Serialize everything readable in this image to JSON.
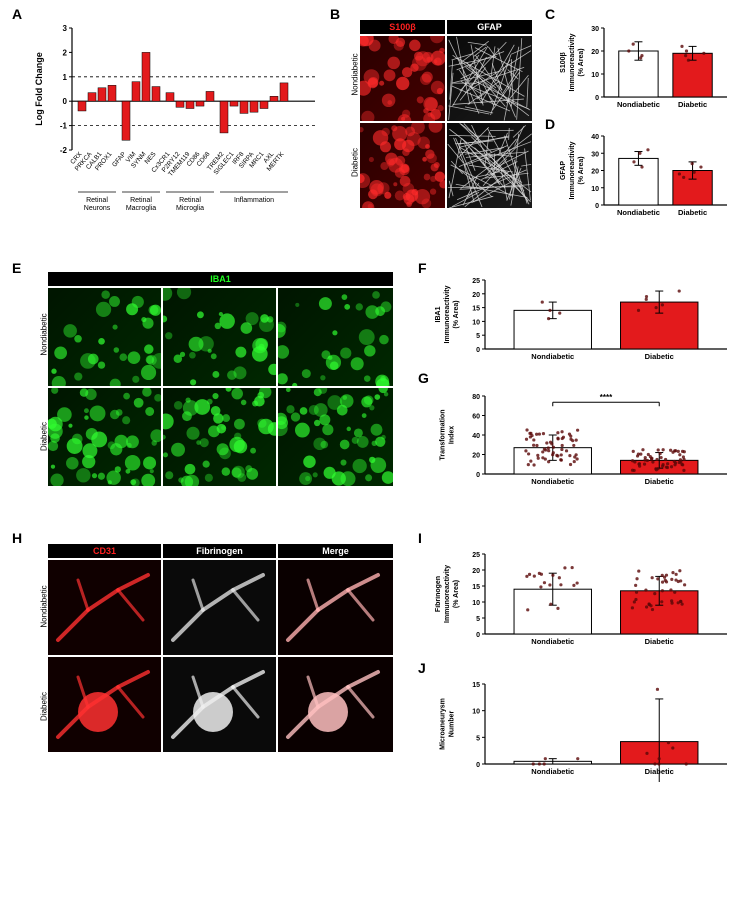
{
  "panels": {
    "A": "A",
    "B": "B",
    "C": "C",
    "D": "D",
    "E": "E",
    "F": "F",
    "G": "G",
    "H": "H",
    "I": "I",
    "J": "J"
  },
  "panelA": {
    "type": "bar",
    "ylabel": "Log Fold Change",
    "ylim": [
      -2,
      3
    ],
    "ytick_step": 1,
    "dashed_lines": [
      1,
      -1
    ],
    "title_fontsize": 10,
    "label_fontsize": 8,
    "bar_color": "#e31a1c",
    "axis_color": "#000000",
    "dash_color": "#000000",
    "groups": [
      {
        "label": "Retinal\nNeurons",
        "genes": [
          "CRX",
          "PRKCA",
          "CALB1",
          "PROX1"
        ],
        "values": [
          -0.4,
          0.35,
          0.55,
          0.65
        ]
      },
      {
        "label": "Retinal\nMacroglia",
        "genes": [
          "GFAP",
          "VIM",
          "SYNM",
          "NES"
        ],
        "values": [
          -1.6,
          0.8,
          2.0,
          0.6
        ]
      },
      {
        "label": "Retinal\nMicroglia",
        "genes": [
          "Cx3CR1",
          "P2RY12",
          "TMEM119",
          "CD86",
          "CD68"
        ],
        "values": [
          0.35,
          -0.25,
          -0.3,
          -0.2,
          0.4
        ]
      },
      {
        "label": "Inflammation",
        "genes": [
          "TREM2",
          "SIGLEC1",
          "IRF8",
          "SIRPA",
          "MRC1",
          "AXL",
          "MERTK"
        ],
        "values": [
          -1.3,
          -0.2,
          -0.5,
          -0.45,
          -0.3,
          0.2,
          0.75
        ]
      }
    ]
  },
  "panelB": {
    "headers": [
      "S100β",
      "GFAP"
    ],
    "header_colors": [
      "#ff2020",
      "#ffffff"
    ],
    "rows": [
      "Nondiabetic",
      "Diabetic"
    ]
  },
  "panelC": {
    "type": "bar",
    "ylabel": "S100β\nImmunoreactivity\n(% Area)",
    "ylim": [
      0,
      30
    ],
    "ytick_step": 10,
    "categories": [
      "Nondiabetic",
      "Diabetic"
    ],
    "values": [
      20,
      19
    ],
    "errors": [
      4,
      3
    ],
    "bar_colors": [
      "#ffffff",
      "#e31a1c"
    ],
    "border_color": "#000000",
    "scatter_color": "#7a1010",
    "scatter": [
      [
        18,
        20,
        23,
        17
      ],
      [
        20,
        22,
        16,
        18,
        19
      ]
    ]
  },
  "panelD": {
    "type": "bar",
    "ylabel": "GFAP\nImmunoreactivity\n(% Area)",
    "ylim": [
      0,
      40
    ],
    "ytick_step": 10,
    "categories": [
      "Nondiabetic",
      "Diabetic"
    ],
    "values": [
      27,
      20
    ],
    "errors": [
      4,
      5
    ],
    "bar_colors": [
      "#ffffff",
      "#e31a1c"
    ],
    "scatter": [
      [
        25,
        30,
        22,
        32
      ],
      [
        18,
        22,
        16,
        19,
        24
      ]
    ]
  },
  "panelE": {
    "header": "IBA1",
    "header_color": "#20ff20",
    "rows": [
      "Nondiabetic",
      "Diabetic"
    ]
  },
  "panelF": {
    "type": "bar",
    "ylabel": "IBA1\nImmunoreactivity\n(% Area)",
    "ylim": [
      0,
      25
    ],
    "ytick_step": 5,
    "categories": [
      "Nondiabetic",
      "Diabetic"
    ],
    "values": [
      14,
      17
    ],
    "errors": [
      3,
      4
    ],
    "bar_colors": [
      "#ffffff",
      "#e31a1c"
    ],
    "scatter": [
      [
        11,
        14,
        17,
        13
      ],
      [
        19,
        21,
        15,
        14,
        18,
        16
      ]
    ]
  },
  "panelG": {
    "type": "bar-scatter",
    "ylabel": "Transformation\nIndex",
    "ylim": [
      0,
      80
    ],
    "ytick_step": 20,
    "categories": [
      "Nondiabetic",
      "Diabetic"
    ],
    "values": [
      27,
      14
    ],
    "errors": [
      13,
      8
    ],
    "bar_colors": [
      "#ffffff",
      "#e31a1c"
    ],
    "sig": "****",
    "scatter_n": [
      60,
      55
    ]
  },
  "panelH": {
    "headers": [
      "CD31",
      "Fibrinogen",
      "Merge"
    ],
    "header_colors": [
      "#ff2020",
      "#ffffff",
      "#ffffff"
    ],
    "rows": [
      "Nondiabetic",
      "Diabetic"
    ]
  },
  "panelI": {
    "type": "bar-scatter",
    "ylabel": "Fibrinogen\nImmunoreactivity\n(% Area)",
    "ylim": [
      0,
      25
    ],
    "ytick_step": 5,
    "categories": [
      "Nondiabetic",
      "Diabetic"
    ],
    "values": [
      14,
      13.5
    ],
    "errors": [
      5,
      4.5
    ],
    "bar_colors": [
      "#ffffff",
      "#e31a1c"
    ],
    "scatter_n": [
      18,
      40
    ]
  },
  "panelJ": {
    "type": "bar-scatter",
    "ylabel": "Microaneurysm\nNumber",
    "ylim": [
      0,
      15
    ],
    "ytick_step": 5,
    "categories": [
      "Nondiabetic",
      "Diabetic"
    ],
    "values": [
      0.5,
      4.2
    ],
    "errors": [
      0.5,
      8
    ],
    "bar_colors": [
      "#ffffff",
      "#e31a1c"
    ],
    "scatter": [
      [
        0,
        0,
        0,
        1,
        1
      ],
      [
        0,
        0,
        0,
        1,
        2,
        3,
        4,
        14
      ]
    ]
  },
  "colors": {
    "bg": "#ffffff",
    "text": "#000000",
    "bar_red": "#e31a1c",
    "scatter_dark": "#5a0808"
  }
}
